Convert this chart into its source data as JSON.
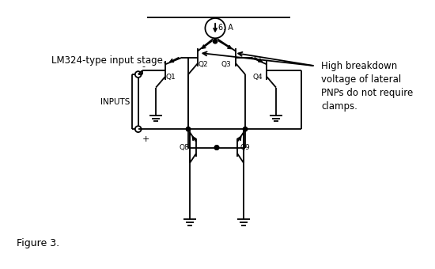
{
  "fig_label": "Figure 3.",
  "top_label": "LM324-type input stage.",
  "annotation_text": "High breakdown\nvoltage of lateral\nPNPs do not require\nclamps.",
  "current_source_label": "6. A",
  "inputs_label": "INPUTS",
  "bg_color": "#ffffff",
  "line_color": "#000000",
  "lw": 1.3,
  "fig_width": 5.5,
  "fig_height": 3.4,
  "dpi": 100
}
